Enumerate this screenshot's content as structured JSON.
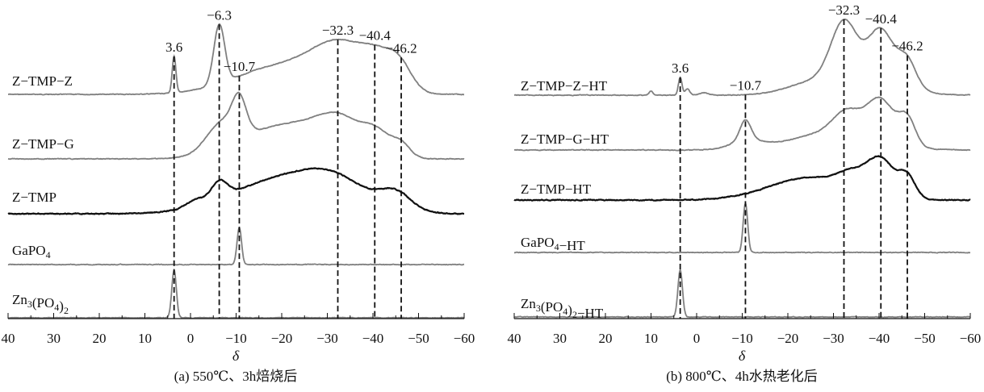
{
  "chart_data": [
    {
      "type": "line",
      "panel": "a",
      "title": "(a) 550℃、3h焙烧后",
      "xlabel": "δ",
      "ylabel": "",
      "xlim": [
        40,
        -60
      ],
      "xticks": [
        40,
        30,
        20,
        10,
        0,
        -10,
        -20,
        -30,
        -40,
        -50,
        -60
      ],
      "xtick_labels": [
        "40",
        "30",
        "20",
        "10",
        "0",
        "−10",
        "−20",
        "−30",
        "−40",
        "−50",
        "−60"
      ],
      "grid": false,
      "peak_markers": [
        {
          "delta": 3.6,
          "label": "3.6"
        },
        {
          "delta": -6.3,
          "label": "−6.3"
        },
        {
          "delta": -10.7,
          "label": "−10.7"
        },
        {
          "delta": -32.3,
          "label": "−32.3"
        },
        {
          "delta": -40.4,
          "label": "−40.4"
        },
        {
          "delta": -46.2,
          "label": "−46.2"
        }
      ],
      "series": [
        {
          "name": "Z−TMP−Z",
          "color": "#808080",
          "components": [
            [
              3.6,
              45,
              0.4
            ],
            [
              -6.3,
              73,
              1.2
            ],
            [
              -20,
              35,
              10
            ],
            [
              -33,
              50,
              6
            ],
            [
              -42,
              35,
              4
            ],
            [
              -46.2,
              20,
              2.5
            ]
          ]
        },
        {
          "name": "Z−TMP−G",
          "color": "#808080",
          "components": [
            [
              -10.7,
              40,
              1.5
            ],
            [
              -7,
              35,
              3.5
            ],
            [
              -21,
              42,
              9
            ],
            [
              -33,
              38,
              5
            ],
            [
              -41,
              25,
              3
            ],
            [
              -46.2,
              16,
              2
            ]
          ]
        },
        {
          "name": "Z−TMP",
          "color": "#111111",
          "components": [
            [
              -6.3,
              22,
              1.8
            ],
            [
              -1,
              8,
              2
            ],
            [
              -20,
              42,
              11
            ],
            [
              -32,
              28,
              7
            ],
            [
              -45,
              22,
              3.5
            ]
          ]
        },
        {
          "name": "GaPO4",
          "color": "#808080",
          "components": [
            [
              -10.7,
              46,
              0.5
            ]
          ]
        },
        {
          "name": "Zn3(PO4)2",
          "color": "#808080",
          "components": [
            [
              3.6,
              59,
              0.5
            ]
          ]
        }
      ]
    },
    {
      "type": "line",
      "panel": "b",
      "title": "(b) 800℃、4h水热老化后",
      "xlabel": "δ",
      "ylabel": "",
      "xlim": [
        40,
        -60
      ],
      "xticks": [
        40,
        30,
        20,
        10,
        0,
        -10,
        -20,
        -30,
        -40,
        -50,
        -60
      ],
      "xtick_labels": [
        "40",
        "30",
        "20",
        "10",
        "0",
        "−10",
        "−20",
        "−30",
        "−40",
        "−50",
        "−60"
      ],
      "grid": false,
      "peak_markers": [
        {
          "delta": 3.6,
          "label": "3.6"
        },
        {
          "delta": -10.7,
          "label": "−10.7"
        },
        {
          "delta": -32.3,
          "label": "−32.3"
        },
        {
          "delta": -40.4,
          "label": "−40.4"
        },
        {
          "delta": -46.2,
          "label": "−46.2"
        }
      ],
      "series": [
        {
          "name": "Z−TMP−Z−HT",
          "color": "#808080",
          "components": [
            [
              3.6,
              22,
              0.4
            ],
            [
              10,
              5,
              0.4
            ],
            [
              2,
              8,
              0.5
            ],
            [
              -1.5,
              3,
              1
            ],
            [
              -32.3,
              70,
              2.8
            ],
            [
              -40.4,
              62,
              2.8
            ],
            [
              -46.2,
              32,
              2
            ],
            [
              -38,
              20,
              7
            ],
            [
              -26,
              15,
              6
            ]
          ]
        },
        {
          "name": "Z−TMP−G−HT",
          "color": "#808080",
          "components": [
            [
              -10.7,
              25,
              1.2
            ],
            [
              -11,
              10,
              3.5
            ],
            [
              -33,
              28,
              3
            ],
            [
              -40.4,
              52,
              3
            ],
            [
              -46.2,
              33,
              1.8
            ],
            [
              -30,
              22,
              9
            ]
          ]
        },
        {
          "name": "Z−TMP−HT",
          "color": "#111111",
          "components": [
            [
              -25,
              28,
              9
            ],
            [
              -40.4,
              45,
              3
            ],
            [
              -34,
              18,
              3
            ],
            [
              -46.2,
              26,
              1.8
            ]
          ]
        },
        {
          "name": "GaPO4−HT",
          "color": "#808080",
          "components": [
            [
              -10.7,
              61,
              0.5
            ]
          ]
        },
        {
          "name": "Zn3(PO4)2−HT",
          "color": "#808080",
          "components": [
            [
              3.6,
              58,
              0.5
            ]
          ]
        }
      ]
    }
  ]
}
